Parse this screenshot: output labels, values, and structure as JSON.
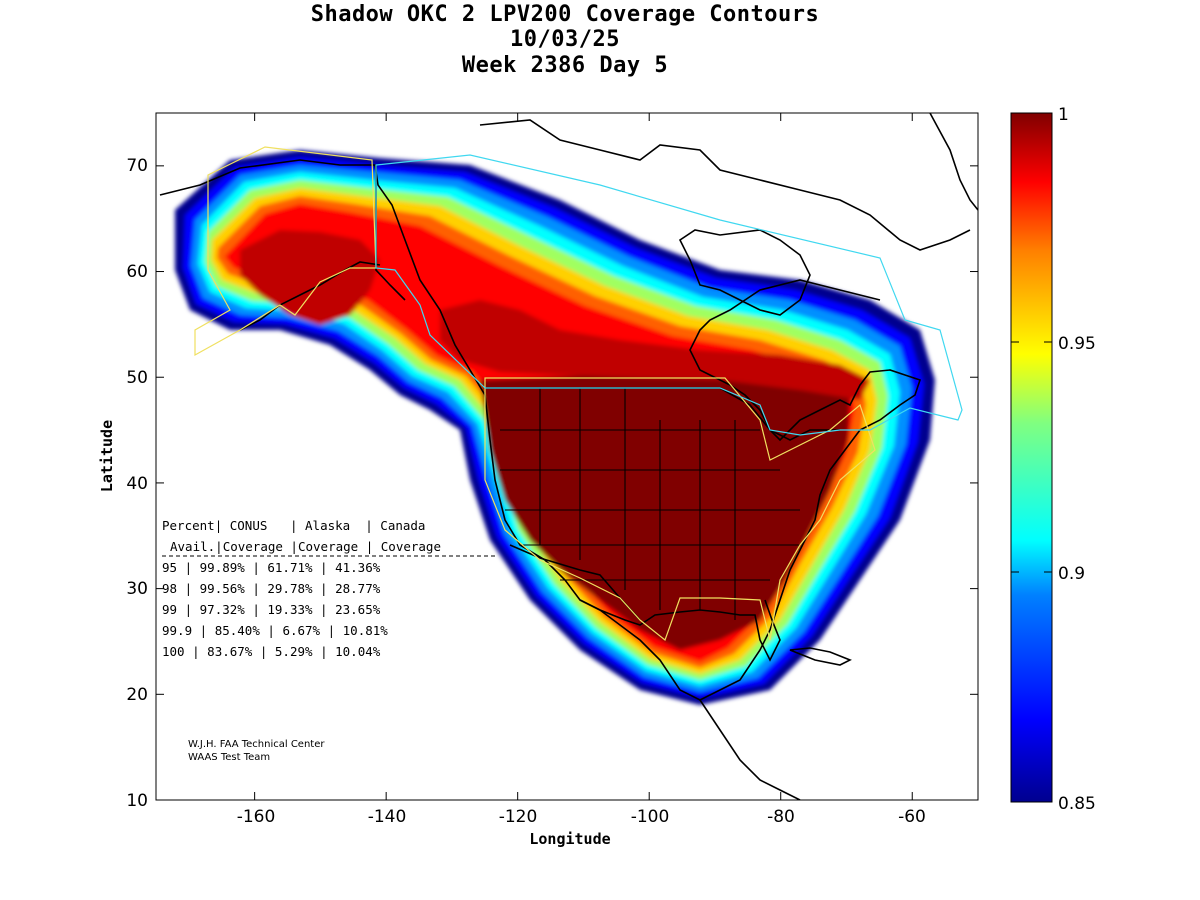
{
  "title": {
    "line1": "Shadow OKC 2 LPV200 Coverage Contours",
    "line2": "10/03/25",
    "line3": "Week 2386 Day 5"
  },
  "axes": {
    "xlabel": "Longitude",
    "ylabel": "Latitude",
    "xlim": [
      -175,
      -50
    ],
    "ylim": [
      10,
      75
    ],
    "xticks": [
      "-160",
      "-140",
      "-120",
      "-100",
      "-80",
      "-60"
    ],
    "yticks": [
      "10",
      "20",
      "30",
      "40",
      "50",
      "60",
      "70"
    ]
  },
  "colorbar": {
    "range": [
      0.85,
      1
    ],
    "ticks": [
      "0.85",
      "0.9",
      "0.95",
      "1"
    ]
  },
  "stats_table": {
    "header1": [
      "Percent",
      "CONUS",
      "Alaska",
      "Canada"
    ],
    "header2": [
      "Avail.",
      "Coverage",
      "Coverage",
      "Coverage"
    ],
    "rows": [
      [
        "95",
        "99.89%",
        "61.71%",
        "41.36%"
      ],
      [
        "98",
        "99.56%",
        "29.78%",
        "28.77%"
      ],
      [
        "99",
        "97.32%",
        "19.33%",
        "23.65%"
      ],
      [
        "99.9",
        "85.40%",
        "6.67%",
        "10.81%"
      ],
      [
        "100",
        "83.67%",
        "5.29%",
        "10.04%"
      ]
    ]
  },
  "credit": {
    "line1": "W.J.H. FAA Technical Center",
    "line2": "WAAS Test Team"
  },
  "colors": {
    "high": "#800000",
    "mid": "#ffff00",
    "low": "#00008f",
    "outline": "#000000",
    "service_volume_yellow": "#f0e060",
    "service_volume_cyan": "#40d8f0"
  }
}
